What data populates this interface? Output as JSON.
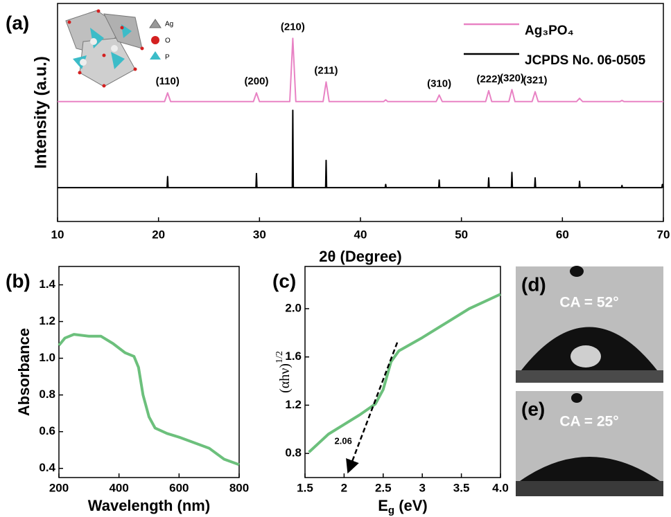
{
  "chart_data": [
    {
      "type": "line",
      "panel_label": "(a)",
      "xlabel": "2θ (Degree)",
      "ylabel": "Intensity (a.u.)",
      "xlim": [
        10,
        70
      ],
      "xticks": [
        10,
        20,
        30,
        40,
        50,
        60,
        70
      ],
      "ylim": [
        0,
        100
      ],
      "legend": "upper right",
      "series": [
        {
          "name": "Ag₃PO₄",
          "color": "#e882c4",
          "x": [
            10,
            20.6,
            20.9,
            21.2,
            29.4,
            29.7,
            30.0,
            33.0,
            33.3,
            33.6,
            36.3,
            36.6,
            36.9,
            42.3,
            42.5,
            42.7,
            47.5,
            47.8,
            48.1,
            52.4,
            52.7,
            53.0,
            54.7,
            55.0,
            55.3,
            57.0,
            57.3,
            57.6,
            61.4,
            61.7,
            62.0,
            65.7,
            65.9,
            66.1,
            70
          ],
          "values": [
            55,
            55,
            59,
            55,
            55,
            59,
            55,
            55,
            84,
            55,
            55,
            64,
            55,
            55,
            55.8,
            55,
            55,
            58,
            55,
            55,
            60,
            55,
            55,
            60.5,
            55,
            55,
            59.5,
            55,
            55,
            56.5,
            55,
            55,
            55.5,
            55,
            55
          ]
        },
        {
          "name": "JCPDS No. 06-0505",
          "color": "#000000",
          "x": [
            10,
            20.85,
            20.9,
            20.95,
            29.65,
            29.7,
            29.75,
            33.25,
            33.3,
            33.35,
            36.55,
            36.6,
            36.65,
            42.45,
            42.5,
            42.55,
            47.75,
            47.8,
            47.85,
            52.65,
            52.7,
            52.75,
            54.95,
            55.0,
            55.05,
            57.25,
            57.3,
            57.35,
            61.65,
            61.7,
            61.75,
            65.85,
            65.9,
            65.95,
            69.85,
            69.9,
            70
          ],
          "values": [
            15.5,
            15.5,
            20.6,
            15.5,
            15.5,
            22,
            15.5,
            15.5,
            51,
            15.5,
            15.5,
            28,
            15.5,
            15.5,
            17,
            15.5,
            15.5,
            19,
            15.5,
            15.5,
            20,
            15.5,
            15.5,
            22.5,
            15.5,
            15.5,
            20,
            15.5,
            15.5,
            18.4,
            15.5,
            15.5,
            16.5,
            15.5,
            15.5,
            17,
            15.5
          ]
        }
      ],
      "annotations": [
        {
          "text": "(110)",
          "x": 20.9
        },
        {
          "text": "(200)",
          "x": 29.7
        },
        {
          "text": "(210)",
          "x": 33.3
        },
        {
          "text": "(211)",
          "x": 36.6
        },
        {
          "text": "(310)",
          "x": 47.8
        },
        {
          "text": "(222)",
          "x": 52.7
        },
        {
          "text": "(320)",
          "x": 55.0
        },
        {
          "text": "(321)",
          "x": 57.3
        }
      ],
      "inset_legend": [
        "Ag",
        "O",
        "P"
      ]
    },
    {
      "type": "line",
      "panel_label": "(b)",
      "xlabel": "Wavelength (nm)",
      "ylabel": "Absorbance",
      "xlim": [
        200,
        800
      ],
      "xticks": [
        200,
        400,
        600,
        800
      ],
      "ylim": [
        0.35,
        1.5
      ],
      "yticks": [
        {
          "value": 0.4,
          "label": "0.4"
        },
        {
          "value": 0.6,
          "label": "0.6"
        },
        {
          "value": 0.8,
          "label": "0.8"
        },
        {
          "value": 1.0,
          "label": "1.0"
        },
        {
          "value": 1.2,
          "label": "1.2"
        },
        {
          "value": 1.4,
          "label": "1.4"
        }
      ],
      "series": [
        {
          "color": "#6cc07c",
          "x": [
            200,
            220,
            250,
            300,
            340,
            380,
            420,
            450,
            465,
            480,
            500,
            520,
            560,
            600,
            650,
            700,
            750,
            800
          ],
          "values": [
            1.07,
            1.11,
            1.13,
            1.12,
            1.12,
            1.08,
            1.03,
            1.01,
            0.95,
            0.8,
            0.68,
            0.62,
            0.59,
            0.57,
            0.54,
            0.51,
            0.45,
            0.42
          ]
        }
      ]
    },
    {
      "type": "line",
      "panel_label": "(c)",
      "xlabel": {
        "text": "E",
        "sub": "g",
        "rest": " (eV)"
      },
      "ylabel": {
        "text": "(αhν)",
        "sup": "1/2"
      },
      "xlim": [
        1.5,
        4.0
      ],
      "xticks": [
        1.5,
        2.0,
        2.5,
        3.0,
        3.5,
        {
          "value": 4.0,
          "label": "4.0"
        }
      ],
      "ylim": [
        0.6,
        2.35
      ],
      "yticks": [
        0.8,
        1.2,
        1.6,
        {
          "value": 2.0,
          "label": "2.0"
        }
      ],
      "series": [
        {
          "color": "#6cc07c",
          "x": [
            1.55,
            1.7,
            1.8,
            2.0,
            2.2,
            2.4,
            2.5,
            2.6,
            2.7,
            3.0,
            3.3,
            3.6,
            3.8,
            4.0
          ],
          "values": [
            0.81,
            0.9,
            0.96,
            1.04,
            1.12,
            1.21,
            1.33,
            1.56,
            1.65,
            1.76,
            1.88,
            2.0,
            2.06,
            2.12
          ]
        }
      ],
      "tangent": {
        "x": [
          2.68,
          2.06
        ],
        "values": [
          1.72,
          0.66
        ]
      },
      "annotations": [
        {
          "text": "2.06",
          "x": 2.06
        }
      ]
    }
  ],
  "photos": [
    {
      "label": "(d)",
      "caption": "CA = 52°"
    },
    {
      "label": "(e)",
      "caption": "CA = 25°"
    }
  ]
}
